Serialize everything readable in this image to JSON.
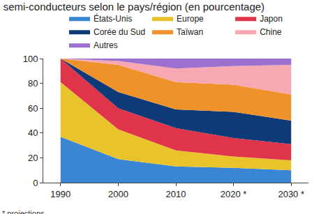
{
  "chart_data": {
    "type": "area",
    "title": "semi-conducteurs selon le pays/région (en pourcentage)",
    "annotations": [
      "* projections."
    ],
    "categories": [
      "1990",
      "2000",
      "2010",
      "2020 *",
      "2030 *"
    ],
    "series": [
      {
        "name": "États-Unis",
        "color": "#3b86d4",
        "values": [
          37,
          19,
          13,
          12,
          10
        ]
      },
      {
        "name": "Europe",
        "color": "#e9c32c",
        "values": [
          44,
          24,
          13,
          9,
          8
        ]
      },
      {
        "name": "Japon",
        "color": "#e0344b",
        "values": [
          19,
          17,
          18,
          15,
          13
        ]
      },
      {
        "name": "Corée du Sud",
        "color": "#0f3a78",
        "values": [
          0,
          13,
          15,
          21,
          19
        ]
      },
      {
        "name": "Taïwan",
        "color": "#f0922c",
        "values": [
          0,
          22,
          22,
          22,
          21
        ]
      },
      {
        "name": "Chine",
        "color": "#f8a8b2",
        "values": [
          0,
          3,
          11,
          15,
          24
        ]
      },
      {
        "name": "Autres",
        "color": "#9b70cf",
        "values": [
          0,
          2,
          8,
          6,
          5
        ]
      }
    ],
    "stacked": true,
    "ylim": [
      0,
      100
    ],
    "yticks": [
      0,
      20,
      40,
      60,
      80,
      100
    ],
    "grid": false,
    "legend": "top"
  }
}
